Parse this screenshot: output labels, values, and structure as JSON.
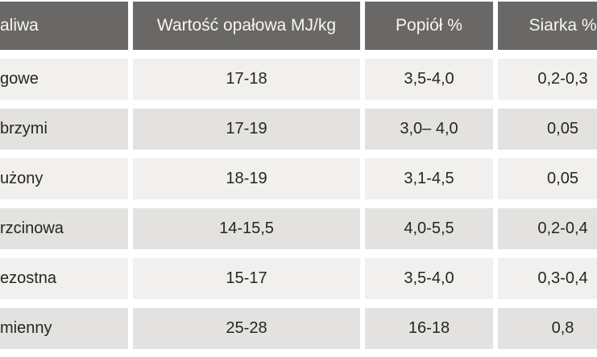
{
  "table": {
    "headers": {
      "fuel": "aliwa",
      "calorific": "Wartość opałowa MJ/kg",
      "ash": "Popiół %",
      "sulfur": "Siarka %"
    },
    "rows": [
      {
        "fuel": "gowe",
        "calorific": "17-18",
        "ash": "3,5-4,0",
        "sulfur": "0,2-0,3"
      },
      {
        "fuel": "brzymi",
        "calorific": "17-19",
        "ash": "3,0– 4,0",
        "sulfur": "0,05"
      },
      {
        "fuel": "użony",
        "calorific": "18-19",
        "ash": "3,1-4,5",
        "sulfur": "0,05"
      },
      {
        "fuel": "rzcinowa",
        "calorific": "14-15,5",
        "ash": "4,0-5,5",
        "sulfur": "0,2-0,4"
      },
      {
        "fuel": "ezostna",
        "calorific": "15-17",
        "ash": "3,5-4,0",
        "sulfur": "0,3-0,4"
      },
      {
        "fuel": "mienny",
        "calorific": "25-28",
        "ash": "16-18",
        "sulfur": "0,8"
      }
    ]
  },
  "colors": {
    "header_bg": "#6a6866",
    "header_text": "#f7f6f4",
    "row_light": "#f1f0ee",
    "row_dark": "#e3e2e0",
    "cell_text": "#262523",
    "background": "#ffffff"
  }
}
